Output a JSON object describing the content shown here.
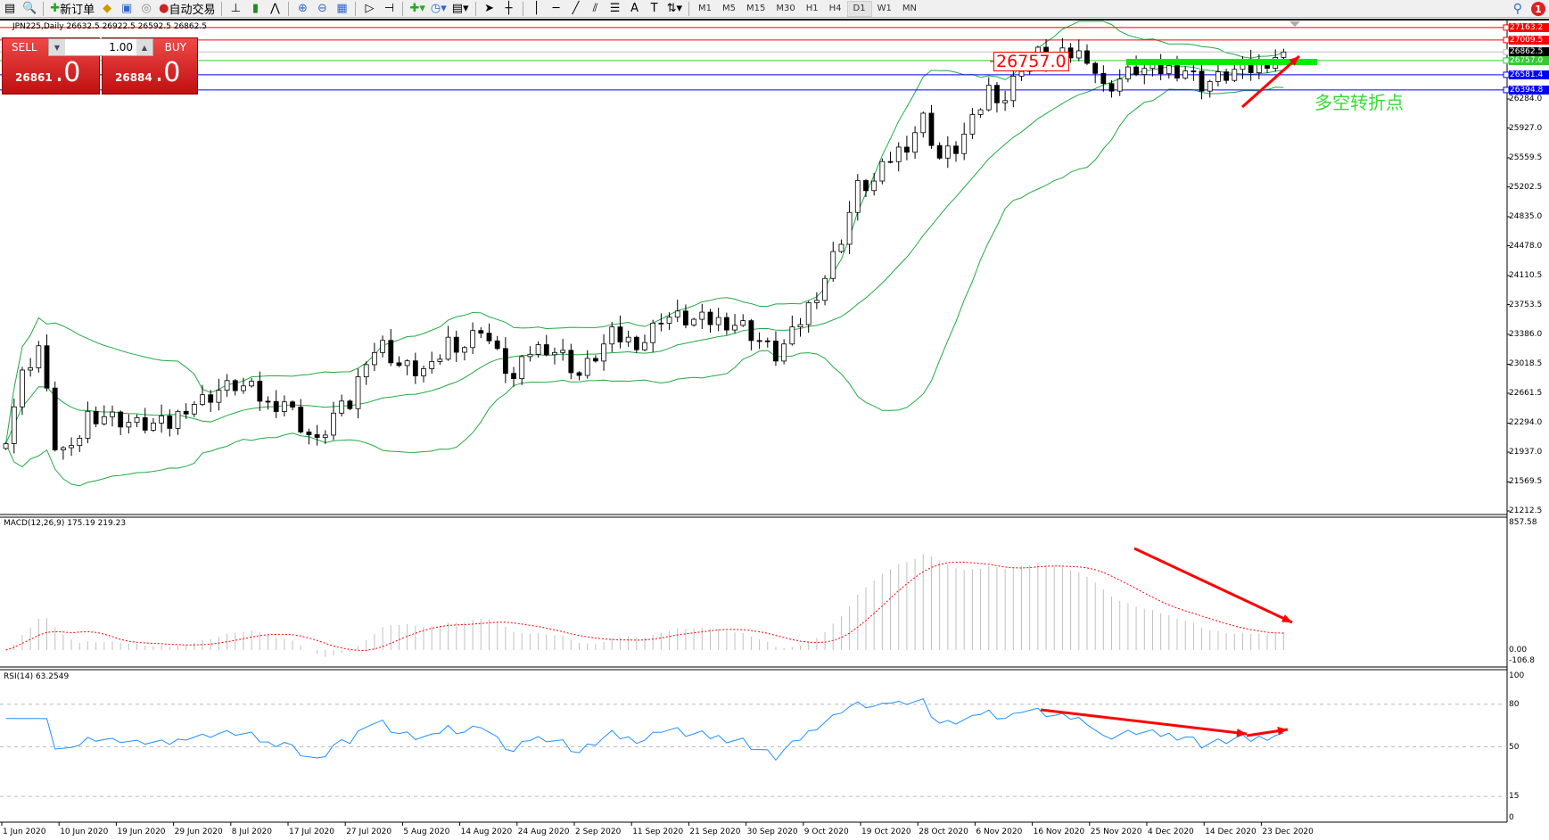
{
  "toolbar": {
    "new_order": "新订单",
    "auto_trading": "自动交易",
    "timeframes": [
      "M1",
      "M5",
      "M15",
      "M30",
      "H1",
      "H4",
      "D1",
      "W1",
      "MN"
    ],
    "active_timeframe": "D1",
    "notification_count": "1"
  },
  "chart": {
    "header": "JPN225,Daily  26632.5 26922.5 26592.5 26862.5"
  },
  "trade_panel": {
    "sell_label": "SELL",
    "buy_label": "BUY",
    "volume": "1.00",
    "sell_price_main": "26861",
    "sell_price_frac": ".0",
    "buy_price_main": "26884",
    "buy_price_frac": ".0"
  },
  "levels": [
    {
      "price": "27163.2",
      "color": "#ff0000"
    },
    {
      "price": "27009.5",
      "color": "#ff0000"
    },
    {
      "price": "26862.5",
      "color": "#000000",
      "line": "#c0c0c0"
    },
    {
      "price": "26757.0",
      "color": "#33cc33"
    },
    {
      "price": "26581.4",
      "color": "#0000ff"
    },
    {
      "price": "26394.8",
      "color": "#0000ff"
    }
  ],
  "price_axis": [
    "26284.0",
    "25927.0",
    "25559.5",
    "25202.5",
    "24835.0",
    "24478.0",
    "24110.5",
    "23753.5",
    "23386.0",
    "23018.5",
    "22661.5",
    "22294.0",
    "21937.0",
    "21569.5",
    "21212.5"
  ],
  "annotation": {
    "price_label": "26757.0",
    "text": "多空转折点",
    "arrow_color": "#ff0000",
    "band_color": "#00ee00"
  },
  "macd": {
    "label": "MACD(12,26,9) 175.19 219.23",
    "axis": [
      "857.58",
      "0.00",
      "-106.8"
    ]
  },
  "rsi": {
    "label": "RSI(14) 63.2549",
    "axis": [
      "100",
      "80",
      "50",
      "15",
      "0"
    ]
  },
  "dates": [
    "1 Jun 2020",
    "10 Jun 2020",
    "19 Jun 2020",
    "29 Jun 2020",
    "8 Jul 2020",
    "17 Jul 2020",
    "27 Jul 2020",
    "5 Aug 2020",
    "14 Aug 2020",
    "24 Aug 2020",
    "2 Sep 2020",
    "11 Sep 2020",
    "21 Sep 2020",
    "30 Sep 2020",
    "9 Oct 2020",
    "19 Oct 2020",
    "28 Oct 2020",
    "6 Nov 2020",
    "16 Nov 2020",
    "25 Nov 2020",
    "4 Dec 2020",
    "14 Dec 2020",
    "23 Dec 2020"
  ],
  "chart_data": {
    "type": "candlestick",
    "symbol": "JPN225",
    "timeframe": "Daily",
    "ylim": [
      21212.5,
      27163.2
    ],
    "closes": [
      22152,
      22881,
      23246,
      22030,
      21908,
      22395,
      22395,
      22334,
      22273,
      22273,
      22273,
      22516,
      22577,
      22699,
      22760,
      22699,
      22516,
      22577,
      22273,
      22030,
      22395,
      22516,
      23124,
      23246,
      23003,
      22942,
      22942,
      23307,
      23246,
      23489,
      23124,
      22820,
      23185,
      23246,
      23124,
      22881,
      23124,
      23368,
      23307,
      23307,
      23611,
      23586,
      23550,
      23550,
      23550,
      23489,
      23307,
      23124,
      23368,
      23733,
      24097,
      24583,
      25192,
      25252,
      25556,
      25739,
      26043,
      25556,
      25678,
      25982,
      26408,
      26286,
      26712,
      26833,
      26772,
      26833,
      26833,
      26408,
      26530,
      26651,
      26627,
      26651,
      26651,
      26469,
      26530,
      26627,
      26651,
      26772,
      26862.5
    ]
  }
}
